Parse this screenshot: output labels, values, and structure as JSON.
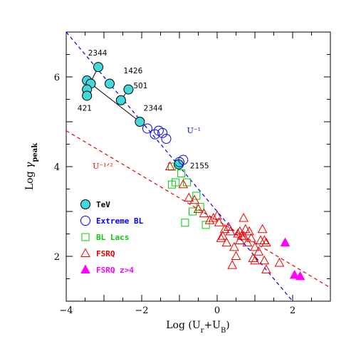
{
  "chart_data": {
    "type": "scatter",
    "xlabel": "Log (U_r+U_B)",
    "ylabel": "Log γ_peak",
    "xlim": [
      -4,
      3
    ],
    "ylim": [
      1,
      7
    ],
    "xticks": [
      -4,
      -2,
      0,
      2
    ],
    "yticks": [
      2,
      4,
      6
    ],
    "grid": false,
    "legend_position": "bottom-left",
    "lines": [
      {
        "name": "U⁻¹",
        "color": "#0000ee",
        "style": "dashed",
        "slope": -1.0,
        "intercept": 3.0,
        "label_at": [
          -0.8,
          4.75
        ]
      },
      {
        "name": "U⁻¹ᐟ²",
        "color": "#ee0000",
        "style": "dashed",
        "slope": -0.5,
        "intercept": 2.8,
        "label_at": [
          -3.3,
          3.95
        ]
      }
    ],
    "connectors": [
      [
        [
          -3.15,
          6.22
        ],
        [
          -3.45,
          5.72
        ]
      ],
      [
        [
          -3.35,
          5.85
        ],
        [
          -2.05,
          5.0
        ]
      ],
      [
        [
          -2.35,
          5.72
        ],
        [
          -2.55,
          5.48
        ]
      ]
    ],
    "series": [
      {
        "name": "TeV",
        "marker": "filled-circle",
        "color": "#40d8d8",
        "points": [
          [
            -3.15,
            6.22
          ],
          [
            -3.45,
            5.92
          ],
          [
            -3.35,
            5.85
          ],
          [
            -3.45,
            5.72
          ],
          [
            -3.45,
            5.58
          ],
          [
            -2.85,
            5.85
          ],
          [
            -2.35,
            5.72
          ],
          [
            -2.55,
            5.48
          ],
          [
            -2.05,
            5.0
          ],
          [
            -1.02,
            4.05
          ]
        ]
      },
      {
        "name": "Extreme BL",
        "marker": "open-circle",
        "color": "#0000ee",
        "points": [
          [
            -1.85,
            4.85
          ],
          [
            -1.65,
            4.72
          ],
          [
            -1.55,
            4.8
          ],
          [
            -1.45,
            4.75
          ],
          [
            -1.35,
            4.62
          ],
          [
            -1.0,
            4.1
          ],
          [
            -0.9,
            4.15
          ]
        ]
      },
      {
        "name": "BL Lacs",
        "marker": "open-square",
        "color": "#00cc00",
        "points": [
          [
            -1.2,
            4.0
          ],
          [
            -0.95,
            3.85
          ],
          [
            -1.1,
            3.65
          ],
          [
            -1.2,
            3.6
          ],
          [
            -0.8,
            3.65
          ],
          [
            -0.55,
            3.35
          ],
          [
            -0.65,
            3.0
          ],
          [
            -0.85,
            2.75
          ],
          [
            -0.45,
            3.1
          ],
          [
            -0.3,
            2.7
          ]
        ]
      },
      {
        "name": "FSRQ",
        "marker": "open-triangle",
        "color": "#ee0000",
        "points": [
          [
            -1.25,
            4.0
          ],
          [
            -0.9,
            3.6
          ],
          [
            -0.75,
            3.3
          ],
          [
            -0.6,
            3.25
          ],
          [
            -0.5,
            3.05
          ],
          [
            -0.1,
            2.85
          ],
          [
            0.05,
            2.75
          ],
          [
            0.2,
            2.6
          ],
          [
            0.35,
            2.55
          ],
          [
            0.1,
            2.4
          ],
          [
            0.25,
            2.3
          ],
          [
            0.45,
            2.2
          ],
          [
            0.55,
            2.5
          ],
          [
            0.6,
            2.35
          ],
          [
            0.7,
            2.45
          ],
          [
            0.75,
            2.6
          ],
          [
            0.8,
            2.3
          ],
          [
            0.9,
            2.4
          ],
          [
            1.0,
            2.2
          ],
          [
            1.1,
            2.1
          ],
          [
            1.2,
            2.6
          ],
          [
            1.25,
            2.35
          ],
          [
            1.3,
            2.3
          ],
          [
            0.7,
            2.85
          ],
          [
            1.0,
            1.9
          ],
          [
            0.5,
            2.0
          ],
          [
            0.4,
            1.8
          ],
          [
            1.25,
            1.9
          ],
          [
            1.3,
            1.7
          ],
          [
            1.65,
            1.85
          ],
          [
            0.0,
            2.9
          ],
          [
            0.15,
            2.45
          ],
          [
            0.6,
            2.55
          ],
          [
            0.85,
            2.55
          ],
          [
            1.15,
            2.35
          ],
          [
            -0.2,
            2.8
          ],
          [
            -0.35,
            2.95
          ],
          [
            0.3,
            2.65
          ],
          [
            0.65,
            2.45
          ],
          [
            0.95,
            1.95
          ]
        ]
      },
      {
        "name": "FSRQ z>4",
        "marker": "filled-triangle",
        "color": "#ff00ff",
        "points": [
          [
            1.8,
            2.3
          ],
          [
            2.05,
            1.58
          ],
          [
            2.2,
            1.55
          ]
        ]
      }
    ],
    "annotations": [
      {
        "text": "2344",
        "at": [
          -3.42,
          6.48
        ]
      },
      {
        "text": "1426",
        "at": [
          -2.48,
          6.08
        ]
      },
      {
        "text": "501",
        "at": [
          -2.22,
          5.75
        ]
      },
      {
        "text": "421",
        "at": [
          -3.7,
          5.25
        ]
      },
      {
        "text": "2344",
        "at": [
          -1.95,
          5.25
        ]
      },
      {
        "text": "2155",
        "at": [
          -0.72,
          3.96
        ]
      }
    ],
    "legend": {
      "TeV": "TeV",
      "Extreme BL": "Extreme BL",
      "BL Lacs": "BL Lacs",
      "FSRQ": "FSRQ",
      "FSRQ z>4": "FSRQ z>4"
    }
  }
}
